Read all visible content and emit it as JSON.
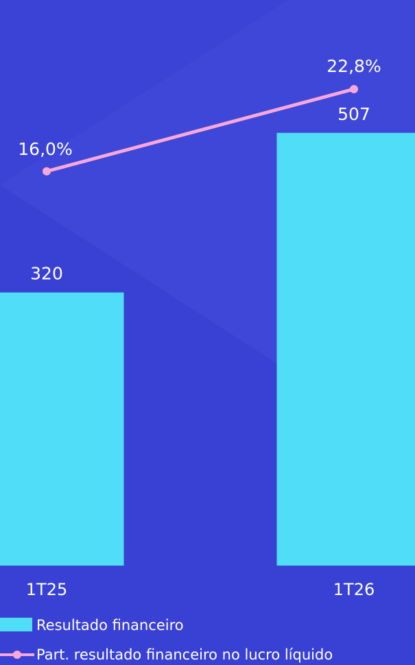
{
  "chart_data": {
    "type": "bar",
    "categories": [
      "1T25",
      "1T26"
    ],
    "series": [
      {
        "name": "Resultado financeiro",
        "type": "bar",
        "values": [
          320,
          507
        ],
        "value_labels": [
          "320",
          "507"
        ],
        "color": "#4FDDF8"
      },
      {
        "name": "Part. resultado financeiro no lucro líquido",
        "type": "line",
        "values": [
          16.0,
          22.8
        ],
        "value_labels": [
          "16,0%",
          "22,8%"
        ],
        "color": "#F8A8D8"
      }
    ],
    "background": "#3B43D6",
    "grid": false,
    "legend_position": "bottom-left"
  }
}
